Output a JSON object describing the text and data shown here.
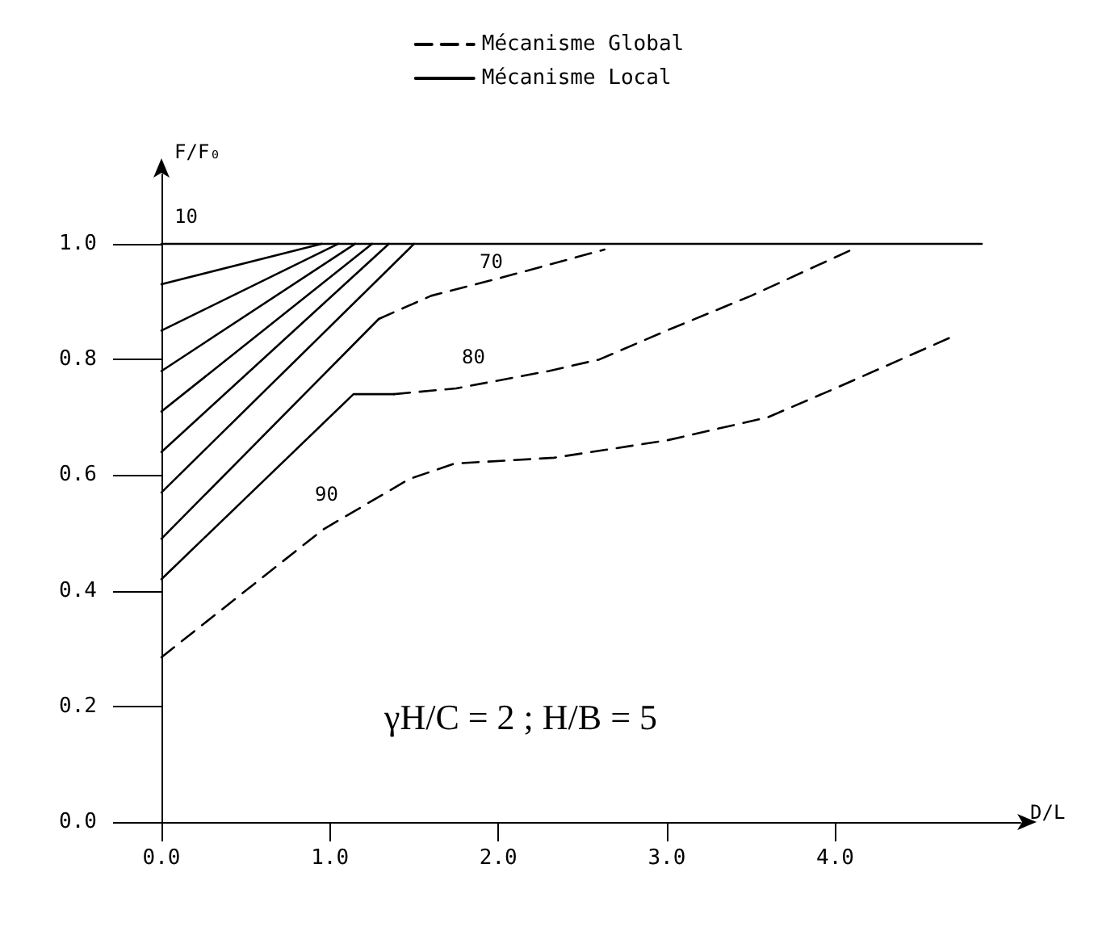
{
  "chart_data": {
    "type": "line",
    "xlabel": "D/L",
    "ylabel": "F/F₀",
    "xlim": [
      0,
      5.1
    ],
    "ylim": [
      0,
      1.12
    ],
    "xticks": [
      {
        "value": 0,
        "label": "0.0"
      },
      {
        "value": 1,
        "label": "1.0"
      },
      {
        "value": 2,
        "label": "2.0"
      },
      {
        "value": 3,
        "label": "3.0"
      },
      {
        "value": 4,
        "label": "4.0"
      }
    ],
    "yticks": [
      {
        "value": 0,
        "label": "0.0"
      },
      {
        "value": 0.2,
        "label": "0.2"
      },
      {
        "value": 0.4,
        "label": "0.4"
      },
      {
        "value": 0.6,
        "label": "0.6"
      },
      {
        "value": 0.8,
        "label": "0.8"
      },
      {
        "value": 1,
        "label": "1.0"
      }
    ],
    "grid": false,
    "legend": "top",
    "marker": "none",
    "series": [
      {
        "name": "Mécanisme Global",
        "color": "#000000",
        "line_style": "dashed",
        "x": [
          0,
          0.96,
          1.47,
          1.74,
          2.33,
          3.0,
          3.6,
          4.0,
          4.7
        ],
        "values": [
          0.285,
          0.506,
          0.593,
          0.62,
          0.63,
          0.66,
          0.7,
          0.75,
          0.84
        ]
      },
      {
        "name": "Mécanisme Local",
        "color": "#000000",
        "line_style": "solid",
        "x": [
          0,
          4.87
        ],
        "values": [
          1.0,
          1.0
        ]
      },
      {
        "color": "#000000",
        "line_style": "solid",
        "x": [
          0,
          0.95
        ],
        "values": [
          0.93,
          1.0
        ]
      },
      {
        "color": "#000000",
        "line_style": "solid",
        "x": [
          0,
          1.05
        ],
        "values": [
          0.85,
          1.0
        ]
      },
      {
        "color": "#000000",
        "line_style": "solid",
        "x": [
          0,
          1.15
        ],
        "values": [
          0.78,
          1.0
        ]
      },
      {
        "color": "#000000",
        "line_style": "solid",
        "x": [
          0,
          1.25
        ],
        "values": [
          0.71,
          1.0
        ]
      },
      {
        "color": "#000000",
        "line_style": "solid",
        "x": [
          0,
          1.35
        ],
        "values": [
          0.64,
          1.0
        ]
      },
      {
        "color": "#000000",
        "line_style": "solid",
        "x": [
          0,
          1.5
        ],
        "values": [
          0.57,
          1.0
        ]
      },
      {
        "color": "#000000",
        "line_style": "solid",
        "x": [
          0,
          1.29
        ],
        "values": [
          0.49,
          0.87
        ]
      },
      {
        "color": "#000000",
        "line_style": "dashed",
        "x": [
          1.29,
          1.6,
          2.0,
          2.63
        ],
        "values": [
          0.87,
          0.91,
          0.94,
          0.99
        ]
      },
      {
        "color": "#000000",
        "line_style": "solid",
        "x": [
          0,
          1.14,
          1.38
        ],
        "values": [
          0.42,
          0.74,
          0.74
        ]
      },
      {
        "color": "#000000",
        "line_style": "dashed",
        "x": [
          1.38,
          1.75,
          2.3,
          2.6,
          3.0,
          3.5,
          4.1
        ],
        "values": [
          0.74,
          0.75,
          0.78,
          0.8,
          0.85,
          0.91,
          0.99
        ]
      }
    ],
    "annotations": [
      "10",
      "70",
      "80",
      "90",
      "γH/C = 2 ; H/B = 5"
    ]
  }
}
